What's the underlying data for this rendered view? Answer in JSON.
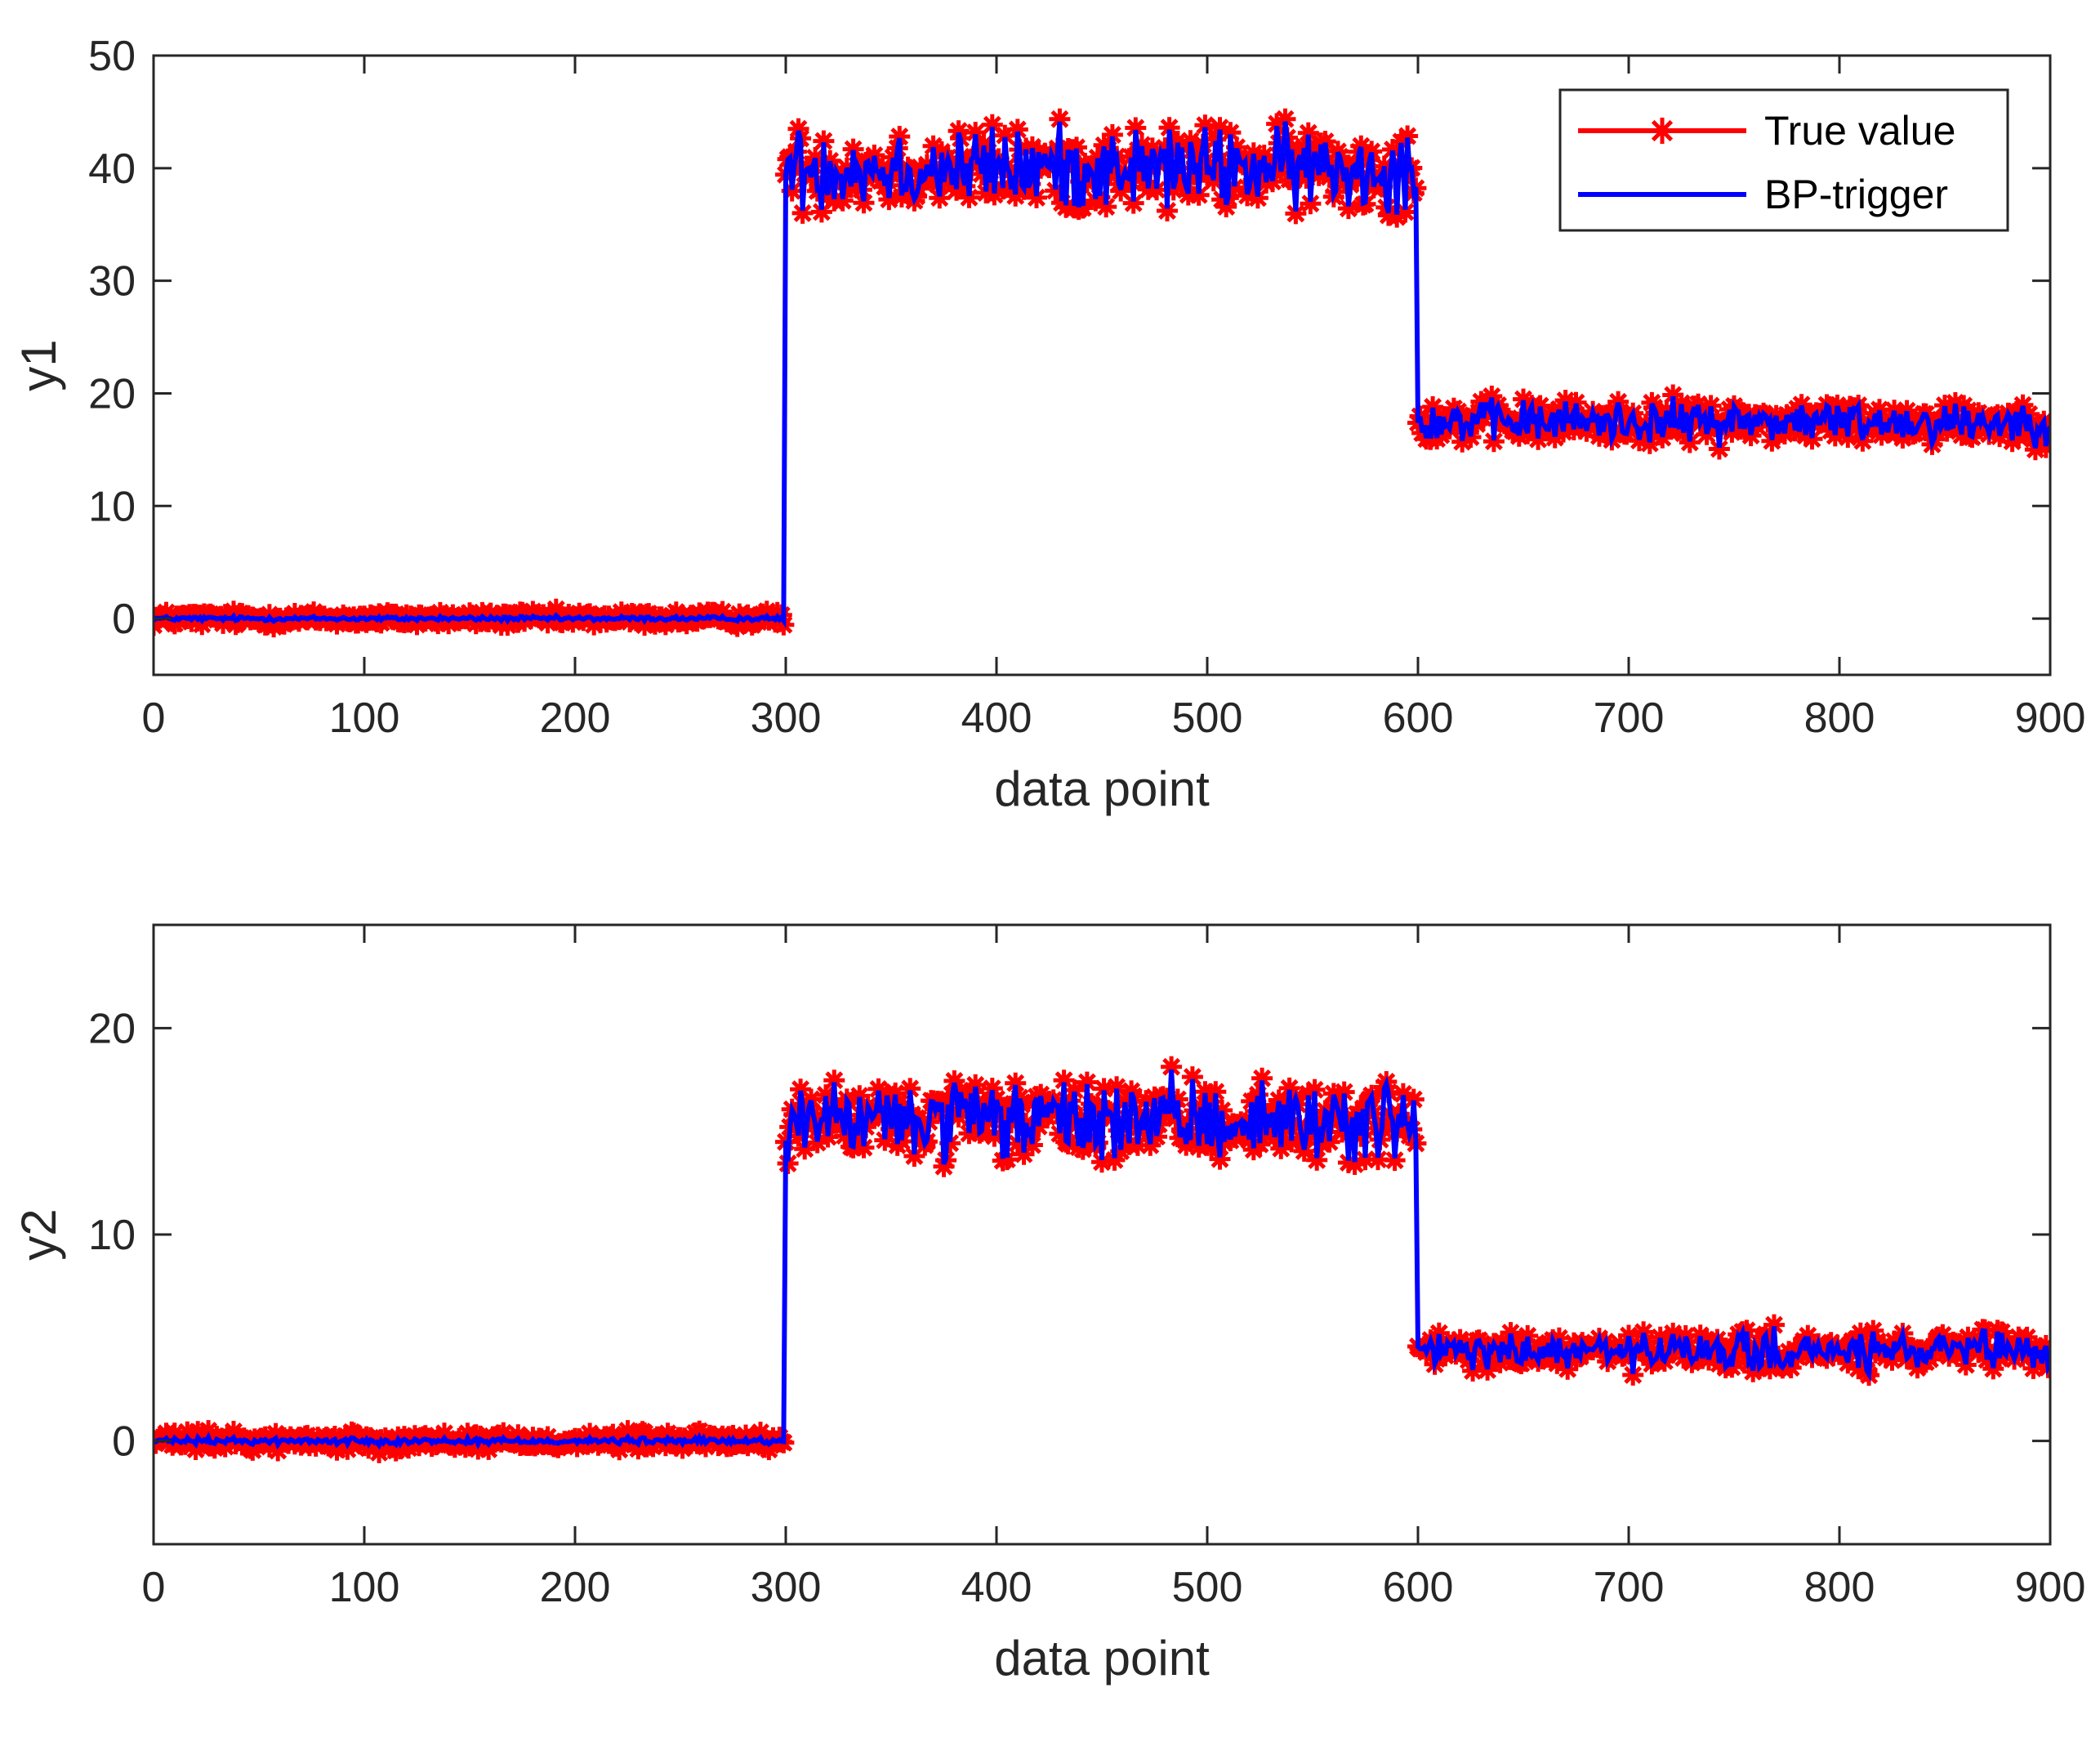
{
  "colors": {
    "true_value": "#ff0000",
    "bp_trigger": "#0000ff",
    "axes": "#262626",
    "background": "#ffffff"
  },
  "legend": {
    "location": "top-right",
    "entries": [
      {
        "label": "True value",
        "color": "#ff0000",
        "marker": "asterisk"
      },
      {
        "label": "BP-trigger",
        "color": "#0000ff",
        "marker": "none"
      }
    ]
  },
  "chart_data": [
    {
      "type": "line",
      "id": "top",
      "ylabel": "y1",
      "xlabel": "data point",
      "xlim": [
        0,
        900
      ],
      "ylim": [
        -5,
        50
      ],
      "xticks": [
        0,
        100,
        200,
        300,
        400,
        500,
        600,
        700,
        800,
        900
      ],
      "yticks": [
        0,
        10,
        20,
        30,
        40,
        50
      ],
      "grid": false,
      "series": [
        {
          "name": "True value",
          "segments": [
            {
              "x_start": 0,
              "x_end": 299,
              "mean": 0,
              "spread": 0.6
            },
            {
              "x_start": 300,
              "x_end": 599,
              "mean": 40,
              "spread": 3.5
            },
            {
              "x_start": 600,
              "x_end": 900,
              "mean": 17.5,
              "spread": 1.8
            }
          ]
        },
        {
          "name": "BP-trigger",
          "segments": [
            {
              "x_start": 0,
              "x_end": 299,
              "mean": 0,
              "spread": 0.2
            },
            {
              "x_start": 300,
              "x_end": 599,
              "mean": 40,
              "spread": 3.5
            },
            {
              "x_start": 600,
              "x_end": 900,
              "mean": 17.5,
              "spread": 1.8
            }
          ]
        }
      ]
    },
    {
      "type": "line",
      "id": "bottom",
      "ylabel": "y2",
      "xlabel": "data point",
      "xlim": [
        0,
        900
      ],
      "ylim": [
        -5,
        25
      ],
      "xticks": [
        0,
        100,
        200,
        300,
        400,
        500,
        600,
        700,
        800,
        900
      ],
      "yticks": [
        0,
        10,
        20
      ],
      "grid": false,
      "series": [
        {
          "name": "True value",
          "segments": [
            {
              "x_start": 0,
              "x_end": 299,
              "mean": 0,
              "spread": 0.4
            },
            {
              "x_start": 300,
              "x_end": 599,
              "mean": 15.5,
              "spread": 1.8
            },
            {
              "x_start": 600,
              "x_end": 900,
              "mean": 4.3,
              "spread": 0.9
            }
          ]
        },
        {
          "name": "BP-trigger",
          "segments": [
            {
              "x_start": 0,
              "x_end": 299,
              "mean": 0,
              "spread": 0.15
            },
            {
              "x_start": 300,
              "x_end": 599,
              "mean": 15.5,
              "spread": 1.8
            },
            {
              "x_start": 600,
              "x_end": 900,
              "mean": 4.3,
              "spread": 0.9
            }
          ]
        }
      ]
    }
  ]
}
